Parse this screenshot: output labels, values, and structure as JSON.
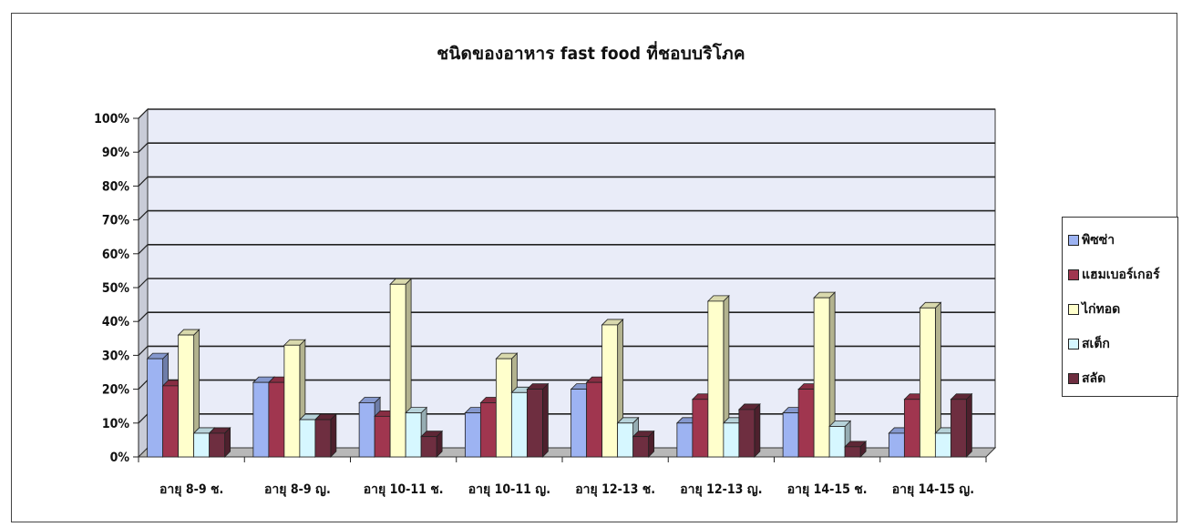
{
  "chart_data": {
    "type": "bar",
    "title": "ชนิดของอาหาร fast food ที่ชอบบริโภค",
    "categories": [
      "อายุ 8-9 ช.",
      "อายุ 8-9 ญ.",
      "อายุ 10-11 ช.",
      "อายุ 10-11 ญ.",
      "อายุ 12-13 ช.",
      "อายุ 12-13 ญ.",
      "อายุ 14-15 ช.",
      "อายุ 14-15 ญ."
    ],
    "ylim": [
      0,
      100
    ],
    "y_ticks": [
      "0%",
      "10%",
      "20%",
      "30%",
      "40%",
      "50%",
      "60%",
      "70%",
      "80%",
      "90%",
      "100%"
    ],
    "legend_position": "right",
    "grid": true,
    "series": [
      {
        "name": "พิซซ่า",
        "color": "#9DB3F2",
        "values": [
          29,
          22,
          16,
          13,
          20,
          10,
          13,
          7
        ]
      },
      {
        "name": "แฮมเบอร์เกอร์",
        "color": "#A0364F",
        "values": [
          21,
          22,
          12,
          16,
          22,
          17,
          20,
          17
        ]
      },
      {
        "name": "ไก่ทอด",
        "color": "#FFFFCC",
        "values": [
          36,
          33,
          51,
          29,
          39,
          46,
          47,
          44
        ]
      },
      {
        "name": "สเต็ก",
        "color": "#D6F7FF",
        "values": [
          7,
          11,
          13,
          19,
          10,
          10,
          9,
          7
        ]
      },
      {
        "name": "สลัด",
        "color": "#6E2E40",
        "values": [
          7,
          11,
          6,
          20,
          6,
          14,
          3,
          17
        ]
      }
    ]
  }
}
